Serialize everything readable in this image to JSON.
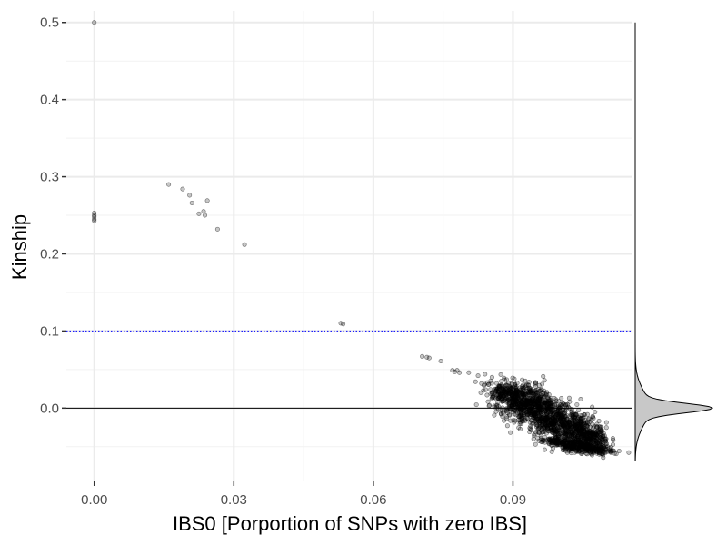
{
  "chart_data": {
    "type": "scatter",
    "xlabel": "IBS0 [Porportion of SNPs with zero IBS]",
    "ylabel": "Kinship",
    "xlim": [
      -0.006,
      0.1155
    ],
    "ylim": [
      -0.095,
      0.515
    ],
    "xticks": [
      0.0,
      0.03,
      0.06,
      0.09
    ],
    "xtick_labels": [
      "0.00",
      "0.03",
      "0.06",
      "0.09"
    ],
    "yticks": [
      0.0,
      0.1,
      0.2,
      0.3,
      0.4,
      0.5
    ],
    "ytick_labels": [
      "0.0",
      "0.1",
      "0.2",
      "0.3",
      "0.4",
      "0.5"
    ],
    "grid": true,
    "hlines": [
      {
        "y": 0.0,
        "style": "solid",
        "color": "#000000"
      },
      {
        "y": 0.1,
        "style": "dotted",
        "color": "#0000ff"
      }
    ],
    "points": [
      {
        "x": 0.0,
        "y": 0.5
      },
      {
        "x": 0.0,
        "y": 0.253
      },
      {
        "x": 0.0,
        "y": 0.25
      },
      {
        "x": 0.0,
        "y": 0.248
      },
      {
        "x": 0.0,
        "y": 0.245
      },
      {
        "x": 0.0,
        "y": 0.243
      },
      {
        "x": 0.016,
        "y": 0.29
      },
      {
        "x": 0.019,
        "y": 0.284
      },
      {
        "x": 0.0205,
        "y": 0.276
      },
      {
        "x": 0.021,
        "y": 0.266
      },
      {
        "x": 0.0225,
        "y": 0.252
      },
      {
        "x": 0.0235,
        "y": 0.255
      },
      {
        "x": 0.0238,
        "y": 0.25
      },
      {
        "x": 0.0243,
        "y": 0.269
      },
      {
        "x": 0.0265,
        "y": 0.232
      },
      {
        "x": 0.0323,
        "y": 0.212
      },
      {
        "x": 0.053,
        "y": 0.11
      },
      {
        "x": 0.0535,
        "y": 0.109
      },
      {
        "x": 0.0705,
        "y": 0.067
      },
      {
        "x": 0.0715,
        "y": 0.066
      },
      {
        "x": 0.072,
        "y": 0.065
      },
      {
        "x": 0.0745,
        "y": 0.061
      },
      {
        "x": 0.077,
        "y": 0.049
      },
      {
        "x": 0.0775,
        "y": 0.047
      },
      {
        "x": 0.078,
        "y": 0.049
      },
      {
        "x": 0.0785,
        "y": 0.046
      },
      {
        "x": 0.0805,
        "y": 0.046
      },
      {
        "x": 0.0825,
        "y": 0.042
      },
      {
        "x": 0.084,
        "y": 0.044
      },
      {
        "x": 0.0855,
        "y": 0.04
      },
      {
        "x": 0.0865,
        "y": 0.032
      },
      {
        "x": 0.0875,
        "y": 0.035
      },
      {
        "x": 0.0885,
        "y": 0.03
      },
      {
        "x": 0.086,
        "y": 0.024
      },
      {
        "x": 0.0845,
        "y": 0.033
      }
    ],
    "dense_clusters": [
      {
        "name": "main",
        "x_from": 0.0875,
        "y_from": 0.022,
        "x_to": 0.1075,
        "y_to": -0.042,
        "spread_x": 0.0022,
        "spread_y": 0.013,
        "count": 1800
      },
      {
        "name": "lower",
        "x_from": 0.0975,
        "y_from": -0.042,
        "x_to": 0.1105,
        "y_to": -0.057,
        "spread_x": 0.0015,
        "spread_y": 0.0035,
        "count": 350
      }
    ],
    "marginal_density": {
      "side": "right",
      "mode": 0.0,
      "peak_width_sd": 0.006,
      "tail_sd": 0.022,
      "tail_weight": 0.18,
      "extent": [
        -0.068,
        0.5
      ],
      "fill": "#c8c8c8"
    }
  }
}
